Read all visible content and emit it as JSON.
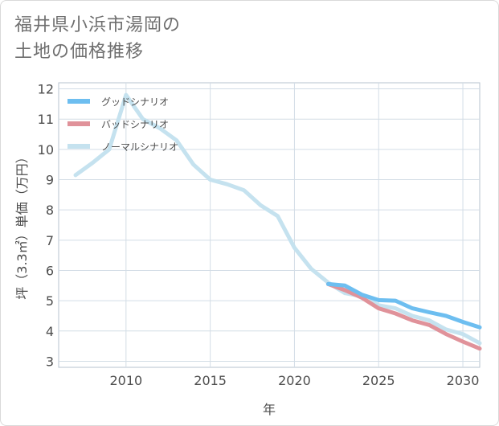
{
  "page": {
    "title_line1": "福井県小浜市湯岡の",
    "title_line2": "土地の価格推移"
  },
  "chart_data": {
    "type": "line",
    "title": "福井県小浜市湯岡の土地の価格推移",
    "xlabel": "年",
    "ylabel": "坪（3.3㎡）単価（万円）",
    "xlim": [
      2006,
      2031
    ],
    "ylim": [
      2.8,
      12.2
    ],
    "x_ticks": [
      2010,
      2015,
      2020,
      2025,
      2030
    ],
    "y_ticks": [
      3,
      4,
      5,
      6,
      7,
      8,
      9,
      10,
      11,
      12
    ],
    "grid": true,
    "legend_position": "top-left",
    "series": [
      {
        "name": "グッドシナリオ",
        "color": "#6dbef0",
        "x": [
          2022,
          2023,
          2024,
          2025,
          2026,
          2027,
          2028,
          2029,
          2030,
          2031
        ],
        "values": [
          5.55,
          5.5,
          5.2,
          5.02,
          5.0,
          4.75,
          4.62,
          4.5,
          4.3,
          4.12
        ]
      },
      {
        "name": "バッドシナリオ",
        "color": "#e0929a",
        "x": [
          2022,
          2023,
          2024,
          2025,
          2026,
          2027,
          2028,
          2029,
          2030,
          2031
        ],
        "values": [
          5.55,
          5.35,
          5.1,
          4.75,
          4.58,
          4.35,
          4.2,
          3.9,
          3.65,
          3.42
        ]
      },
      {
        "name": "ノーマルシナリオ",
        "color": "#c5e2ef",
        "x": [
          2007,
          2008,
          2009,
          2010,
          2011,
          2012,
          2013,
          2014,
          2015,
          2016,
          2017,
          2018,
          2019,
          2020,
          2021,
          2022,
          2023,
          2024,
          2025,
          2026,
          2027,
          2028,
          2029,
          2030,
          2031
        ],
        "values": [
          9.15,
          9.55,
          10.0,
          11.8,
          11.0,
          10.7,
          10.3,
          9.5,
          9.0,
          8.85,
          8.65,
          8.15,
          7.8,
          6.75,
          6.05,
          5.6,
          5.25,
          5.15,
          4.85,
          4.75,
          4.5,
          4.35,
          4.05,
          3.9,
          3.6
        ]
      }
    ]
  }
}
